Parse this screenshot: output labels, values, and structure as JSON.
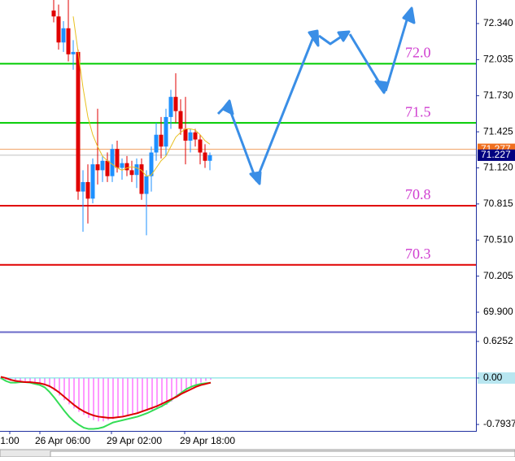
{
  "chart_data": [
    {
      "type": "candlestick",
      "open": [
        72.45,
        72.4,
        72.18,
        72.3,
        72.08,
        72.1,
        70.92,
        71.0,
        70.86,
        71.15,
        71.1,
        71.18,
        71.05,
        71.28,
        71.12,
        71.16,
        71.1,
        71.06,
        71.15,
        70.9,
        71.05,
        71.25,
        71.4,
        71.3,
        71.55,
        71.72,
        71.6,
        71.45,
        71.35,
        71.42,
        71.36,
        71.25,
        71.18
      ],
      "high": [
        72.54,
        72.5,
        72.36,
        72.54,
        72.2,
        72.12,
        71.1,
        71.15,
        71.2,
        71.62,
        71.22,
        71.25,
        71.32,
        71.35,
        71.2,
        71.22,
        71.18,
        71.2,
        71.2,
        71.1,
        71.3,
        71.5,
        71.55,
        71.62,
        71.78,
        71.92,
        71.7,
        71.72,
        71.45,
        71.45,
        71.4,
        71.32,
        71.25
      ],
      "low": [
        72.35,
        72.12,
        72.1,
        72.02,
        71.95,
        70.85,
        70.58,
        70.65,
        70.82,
        70.98,
        71.0,
        71.0,
        71.0,
        71.08,
        71.02,
        71.05,
        71.0,
        70.95,
        70.85,
        70.55,
        70.92,
        71.18,
        71.2,
        71.22,
        71.45,
        71.5,
        71.4,
        71.15,
        71.25,
        71.3,
        71.15,
        71.12,
        71.1
      ],
      "close": [
        72.4,
        72.18,
        72.3,
        72.08,
        72.1,
        70.92,
        71.0,
        70.86,
        71.15,
        71.1,
        71.18,
        71.05,
        71.28,
        71.12,
        71.16,
        71.1,
        71.06,
        71.15,
        70.9,
        71.05,
        71.25,
        71.4,
        71.3,
        71.55,
        71.72,
        71.6,
        71.45,
        71.35,
        71.42,
        71.36,
        71.25,
        71.18,
        71.227
      ],
      "up_color": "#1e90ff",
      "down_color": "#e00000",
      "ma": {
        "color": "#e8c020",
        "values": [
          null,
          null,
          null,
          null,
          72.4,
          72.1,
          71.8,
          71.55,
          71.4,
          71.3,
          71.22,
          71.18,
          71.15,
          71.12,
          71.1,
          71.12,
          71.13,
          71.12,
          71.1,
          71.05,
          71.06,
          71.12,
          71.18,
          71.22,
          71.3,
          71.38,
          71.42,
          71.45,
          71.45,
          71.44,
          71.4,
          71.35,
          71.32
        ]
      },
      "ylim": [
        69.735,
        72.539
      ],
      "yticks": [
        {
          "value": 72.34,
          "label": "72.340"
        },
        72.035,
        {
          "value": 71.73,
          "label": "71.730"
        },
        71.425,
        {
          "value": 71.12,
          "label": "71.120"
        },
        70.815,
        {
          "value": 70.51,
          "label": "70.510"
        },
        70.205,
        {
          "value": 69.9,
          "label": "69.900"
        }
      ],
      "levels": [
        {
          "value": 72.0,
          "label": "72.0",
          "color": "#00cc00"
        },
        {
          "value": 71.5,
          "label": "71.5",
          "color": "#00cc00"
        },
        {
          "value": 70.8,
          "label": "70.8",
          "color": "#e00000"
        },
        {
          "value": 70.3,
          "label": "70.3",
          "color": "#e00000"
        }
      ],
      "ask": 71.277,
      "bid": 71.227
    },
    {
      "type": "macd",
      "histogram": {
        "color": "#ff33ff",
        "values": [
          -0.02,
          -0.03,
          -0.05,
          -0.06,
          -0.07,
          -0.08,
          -0.08,
          -0.09,
          -0.1,
          -0.12,
          -0.16,
          -0.22,
          -0.3,
          -0.38,
          -0.45,
          -0.52,
          -0.58,
          -0.63,
          -0.68,
          -0.72,
          -0.74,
          -0.74,
          -0.72,
          -0.7,
          -0.68,
          -0.66,
          -0.64,
          -0.62,
          -0.6,
          -0.58,
          -0.56,
          -0.55,
          -0.53,
          -0.5,
          -0.46,
          -0.4,
          -0.34,
          -0.28,
          -0.22,
          -0.17,
          -0.12,
          -0.08,
          -0.05,
          -0.03
        ]
      },
      "main_line": {
        "color": "#33dd55",
        "values": [
          0.0,
          -0.05,
          -0.08,
          -0.08,
          -0.07,
          -0.07,
          -0.08,
          -0.1,
          -0.12,
          -0.16,
          -0.24,
          -0.34,
          -0.45,
          -0.56,
          -0.66,
          -0.74,
          -0.8,
          -0.85,
          -0.87,
          -0.87,
          -0.86,
          -0.84,
          -0.8,
          -0.76,
          -0.74,
          -0.72,
          -0.7,
          -0.68,
          -0.66,
          -0.63,
          -0.6,
          -0.56,
          -0.52,
          -0.48,
          -0.43,
          -0.37,
          -0.31,
          -0.25,
          -0.19,
          -0.15,
          -0.12,
          -0.1,
          -0.09,
          -0.08
        ]
      },
      "signal_line": {
        "color": "#dd0000",
        "values": [
          0.02,
          0.0,
          -0.03,
          -0.05,
          -0.06,
          -0.07,
          -0.07,
          -0.08,
          -0.09,
          -0.11,
          -0.14,
          -0.19,
          -0.25,
          -0.32,
          -0.39,
          -0.46,
          -0.52,
          -0.57,
          -0.61,
          -0.64,
          -0.66,
          -0.67,
          -0.68,
          -0.68,
          -0.67,
          -0.66,
          -0.64,
          -0.62,
          -0.6,
          -0.57,
          -0.54,
          -0.51,
          -0.48,
          -0.44,
          -0.4,
          -0.36,
          -0.32,
          -0.27,
          -0.23,
          -0.19,
          -0.15,
          -0.12,
          -0.1,
          -0.08
        ]
      },
      "zero_color": "#66dddd",
      "ylim": [
        -0.904,
        0.763
      ],
      "yticks": [
        0.6252,
        {
          "value": 0,
          "label": "0.00"
        },
        -0.7937
      ],
      "x_labels": [
        "1:00",
        "26 Apr 06:00",
        "29 Apr 02:00",
        "29 Apr 18:00"
      ]
    }
  ]
}
